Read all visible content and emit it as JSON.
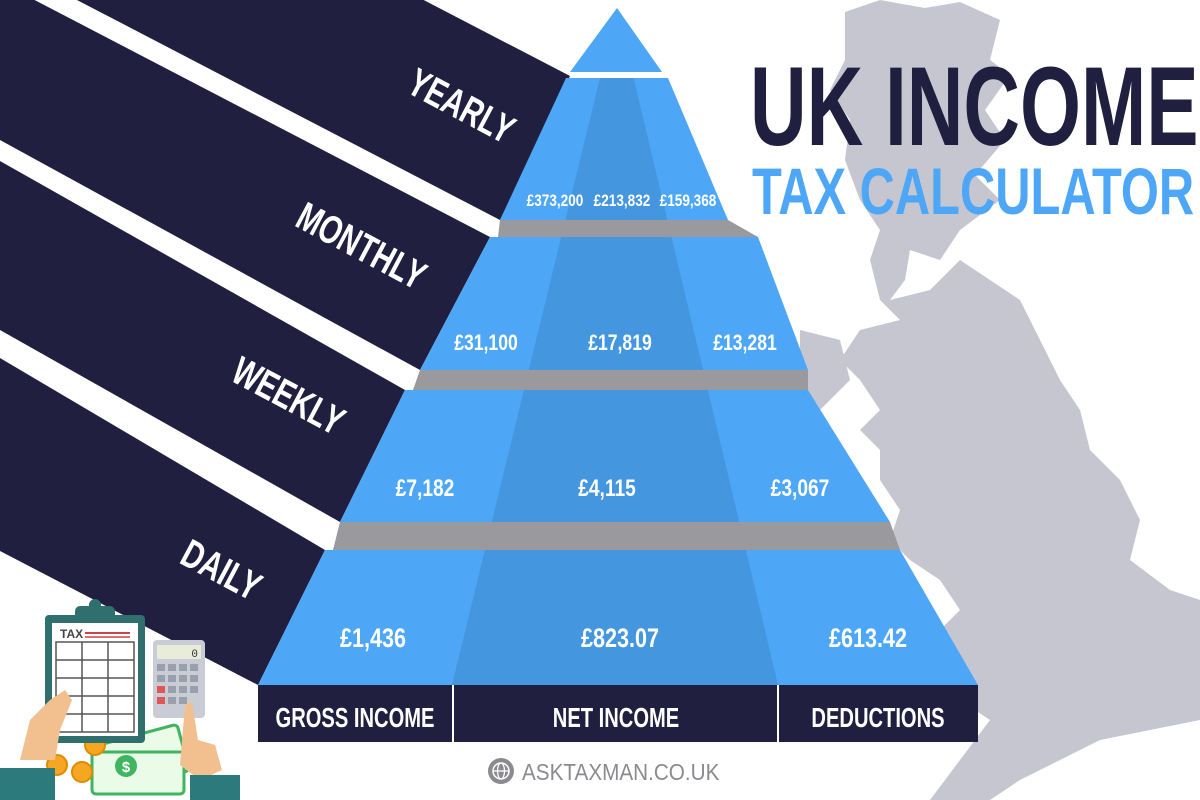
{
  "title": {
    "line1": "UK INCOME",
    "line2": "TAX CALCULATOR"
  },
  "colors": {
    "navy": "#211f40",
    "blue": "#4da7f6",
    "blue_dark": "#4496df",
    "shelf": "#9a9a9e",
    "map": "#c6c6d0"
  },
  "periods": [
    {
      "label": "YEARLY",
      "gross": "£373,200",
      "net": "£213,832",
      "deductions": "£159,368"
    },
    {
      "label": "MONTHLY",
      "gross": "£31,100",
      "net": "£17,819",
      "deductions": "£13,281"
    },
    {
      "label": "WEEKLY",
      "gross": "£7,182",
      "net": "£4,115",
      "deductions": "£3,067"
    },
    {
      "label": "DAILY",
      "gross": "£1,436",
      "net": "£823.07",
      "deductions": "£613.42"
    }
  ],
  "columns": {
    "gross": "GROSS INCOME",
    "net": "NET INCOME",
    "deductions": "DEDUCTIONS"
  },
  "illustration": {
    "clipboard_label": "TAX",
    "calculator_display": "0"
  },
  "footer": {
    "website": "ASKTAXMAN.CO.UK",
    "icon": "globe-icon"
  }
}
